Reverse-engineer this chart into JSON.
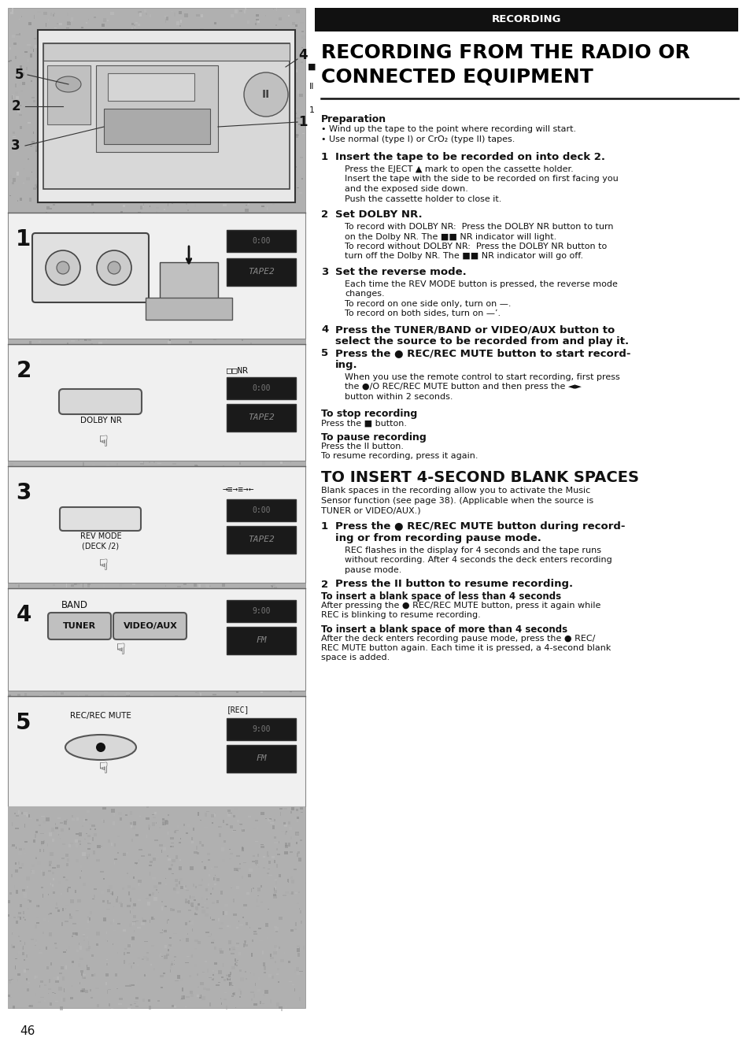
{
  "page_bg": "#ffffff",
  "left_bg": "#aaaaaa",
  "header_bar_bg": "#111111",
  "header_text": "RECORDING",
  "header_text_color": "#ffffff",
  "main_title_line1": "RECORDING FROM THE RADIO OR",
  "main_title_line2": "CONNECTED EQUIPMENT",
  "title_color": "#000000",
  "preparation_bold": "Preparation",
  "prep_bullets": [
    "• Wind up the tape to the point where recording will start.",
    "• Use normal (type I) or CrO₂ (type II) tapes."
  ],
  "steps": [
    {
      "num": "1",
      "bold": "Insert the tape to be recorded on into deck 2.",
      "body": "Press the EJECT ▲ mark to open the cassette holder.\nInsert the tape with the side to be recorded on first facing you\nand the exposed side down.\nPush the cassette holder to close it."
    },
    {
      "num": "2",
      "bold": "Set DOLBY NR.",
      "body": "To record with DOLBY NR:  Press the DOLBY NR button to turn\non the Dolby NR. The ■■ NR indicator will light.\nTo record without DOLBY NR:  Press the DOLBY NR button to\nturn off the Dolby NR. The ■■ NR indicator will go off."
    },
    {
      "num": "3",
      "bold": "Set the reverse mode.",
      "body": "Each time the REV MODE button is pressed, the reverse mode\nchanges.\nTo record on one side only, turn on —.\nTo record on both sides, turn on —’."
    },
    {
      "num": "4",
      "bold": "Press the TUNER/BAND or VIDEO/AUX button to\nselect the source to be recorded from and play it.",
      "body": ""
    },
    {
      "num": "5",
      "bold": "Press the ● REC/REC MUTE button to start record-\ning.",
      "body": "When you use the remote control to start recording, first press\nthe ●/O REC/REC MUTE button and then press the ◄►\nbutton within 2 seconds."
    }
  ],
  "stop_title": "To stop recording",
  "stop_body": "Press the ■ button.",
  "pause_title": "To pause recording",
  "pause_body": "Press the II button.\nTo resume recording, press it again.",
  "insert_section_title": "TO INSERT 4-SECOND BLANK SPACES",
  "insert_section_intro": "Blank spaces in the recording allow you to activate the Music\nSensor function (see page 38). (Applicable when the source is\nTUNER or VIDEO/AUX.)",
  "insert_steps": [
    {
      "num": "1",
      "bold": "Press the ● REC/REC MUTE button during record-\ning or from recording pause mode.",
      "body": "REC flashes in the display for 4 seconds and the tape runs\nwithout recording. After 4 seconds the deck enters recording\npause mode."
    },
    {
      "num": "2",
      "bold": "Press the II button to resume recording.",
      "body": ""
    }
  ],
  "less4_title": "To insert a blank space of less than 4 seconds",
  "less4_body": "After pressing the ● REC/REC MUTE button, press it again while\nREC is blinking to resume recording.",
  "more4_title": "To insert a blank space of more than 4 seconds",
  "more4_body": "After the deck enters recording pause mode, press the ● REC/\nREC MUTE button again. Each time it is pressed, a 4-second blank\nspace is added.",
  "page_number": "46"
}
